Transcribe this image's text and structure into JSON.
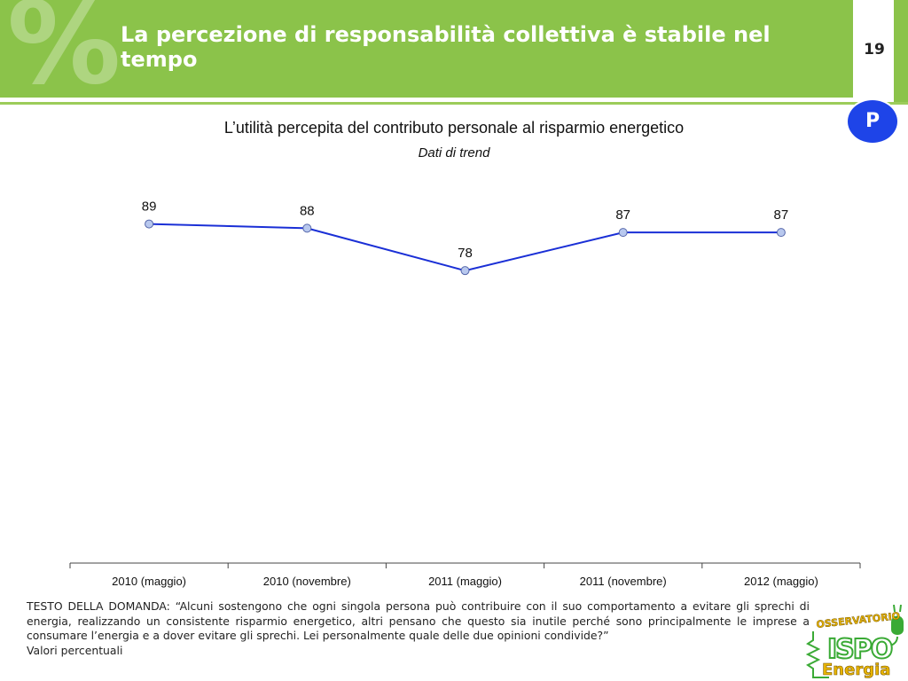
{
  "header": {
    "watermark": "%",
    "title": "La percezione di responsabilità collettiva è stabile nel tempo",
    "page_number": "19",
    "badge": "P"
  },
  "chart_data": {
    "type": "line",
    "title": "L’utilità percepita del contributo personale al risparmio energetico",
    "subtitle": "Dati di trend",
    "categories": [
      "2010 (maggio)",
      "2010 (novembre)",
      "2011 (maggio)",
      "2011 (novembre)",
      "2012 (maggio)"
    ],
    "series": [
      {
        "values": [
          89,
          88,
          78,
          87,
          87
        ],
        "color": "#1a2fd6",
        "marker_fill": "#b8c8ee"
      }
    ],
    "ylim": [
      0,
      100
    ],
    "grid": false,
    "legend": "none"
  },
  "note": {
    "question": "TESTO DELLA DOMANDA: “Alcuni sostengono che ogni singola persona può contribuire con il suo comportamento a evitare gli sprechi di energia, realizzando un consistente risparmio energetico, altri pensano che questo sia inutile perché sono principalmente le imprese a consumare l’energia e a dover evitare gli sprechi. Lei personalmente quale delle due opinioni condivide?”",
    "units": "Valori percentuali"
  },
  "logo": {
    "top": "OSSERVATORIO",
    "middle": "ISPO",
    "bottom": "Energia"
  },
  "colors": {
    "header_green": "#8bc34a",
    "badge_blue": "#1e44e8",
    "series_blue": "#1a2fd6"
  }
}
